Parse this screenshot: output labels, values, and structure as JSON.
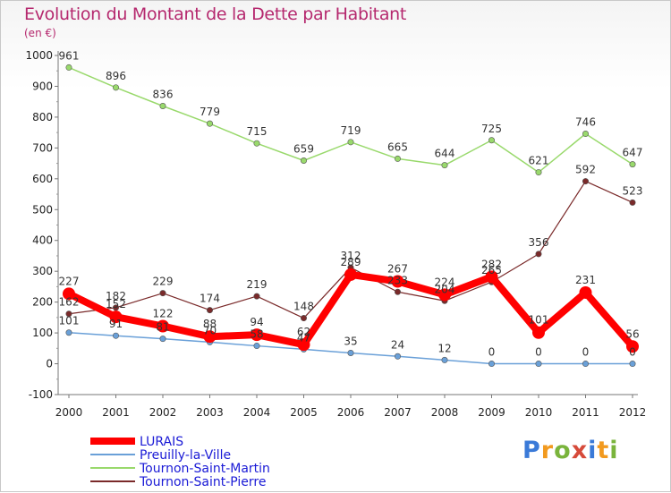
{
  "header": {
    "title": "Evolution du Montant de la Dette par Habitant",
    "subtitle": "(en €)"
  },
  "brand": {
    "logo_text": "Proxiti",
    "logo_colors": [
      "#3a7ad8",
      "#f29a1f",
      "#7ab43c",
      "#d64a3a",
      "#3a7ad8",
      "#f29a1f",
      "#7ab43c"
    ]
  },
  "chart_data": {
    "type": "line",
    "title": "Evolution du Montant de la Dette par Habitant",
    "subtitle": "(en €)",
    "xlabel": "",
    "ylabel": "",
    "x": [
      "2000",
      "2001",
      "2002",
      "2003",
      "2004",
      "2005",
      "2006",
      "2007",
      "2008",
      "2009",
      "2010",
      "2011",
      "2012"
    ],
    "ylim": [
      -100,
      1000
    ],
    "yticks": [
      -100,
      0,
      100,
      200,
      300,
      400,
      500,
      600,
      700,
      800,
      900,
      1000
    ],
    "grid": false,
    "legend_position": "bottom-left",
    "series": [
      {
        "name": "LURAIS",
        "color": "#ff0000",
        "width": 8,
        "values": [
          227,
          152,
          122,
          88,
          94,
          62,
          289,
          267,
          224,
          282,
          101,
          231,
          56
        ]
      },
      {
        "name": "Preuilly-la-Ville",
        "color": "#6aa0d8",
        "width": 1.5,
        "values": [
          101,
          91,
          81,
          70,
          58,
          47,
          35,
          24,
          12,
          0,
          0,
          0,
          0
        ]
      },
      {
        "name": "Tournon-Saint-Martin",
        "color": "#99d96c",
        "width": 1.5,
        "values": [
          961,
          896,
          836,
          779,
          715,
          659,
          719,
          665,
          644,
          725,
          621,
          746,
          647
        ]
      },
      {
        "name": "Tournon-Saint-Pierre",
        "color": "#7a2a2a",
        "width": 1.2,
        "values": [
          162,
          182,
          229,
          174,
          219,
          148,
          312,
          233,
          204,
          265,
          356,
          592,
          523
        ]
      }
    ]
  }
}
